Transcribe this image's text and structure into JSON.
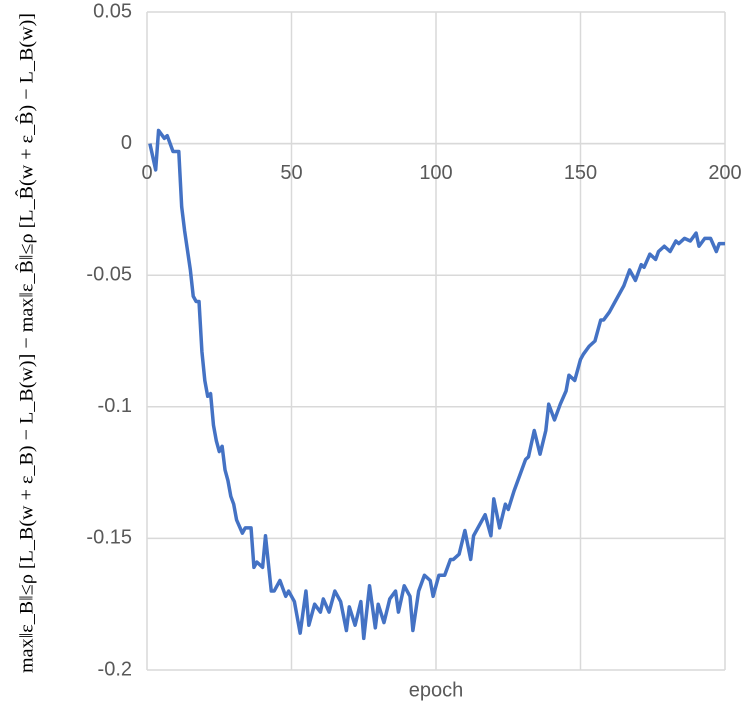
{
  "chart_data": {
    "type": "line",
    "x_label": "epoch",
    "y_label": "max‖ε_B‖≤ρ [L_B(w + ε_B) − L_B(w)] − max‖ε_B̂‖≤ρ [L_B̂(w + ε_B̂) − L_B(w)]",
    "color": "#4472c4",
    "grid": true,
    "xlim": [
      0,
      200
    ],
    "xticks": [
      0,
      50,
      100,
      150,
      200
    ],
    "ylim": [
      -0.2,
      0.05
    ],
    "yticks": [
      0.05,
      0,
      -0.05,
      -0.1,
      -0.15,
      -0.2
    ],
    "x": [
      1,
      3,
      4,
      6,
      7,
      9,
      11,
      12,
      13,
      15,
      16,
      17,
      18,
      19,
      20,
      21,
      22,
      23,
      24,
      25,
      26,
      27,
      28,
      29,
      30,
      31,
      33,
      34,
      36,
      37,
      38,
      40,
      41,
      43,
      44,
      46,
      48,
      49,
      51,
      53,
      55,
      56,
      58,
      60,
      61,
      63,
      65,
      67,
      69,
      70,
      72,
      74,
      75,
      77,
      79,
      80,
      82,
      84,
      86,
      87,
      89,
      91,
      92,
      94,
      96,
      98,
      99,
      101,
      103,
      105,
      106,
      108,
      110,
      112,
      113,
      115,
      117,
      119,
      120,
      122,
      124,
      125,
      127,
      129,
      131,
      132,
      134,
      136,
      138,
      139,
      141,
      143,
      145,
      146,
      148,
      150,
      151,
      153,
      155,
      157,
      158,
      160,
      162,
      164,
      165,
      167,
      169,
      171,
      172,
      174,
      176,
      177,
      179,
      181,
      183,
      184,
      186,
      188,
      190,
      191,
      193,
      195,
      197,
      198,
      200
    ],
    "values": [
      0,
      -0.01,
      0.005,
      0.002,
      0.003,
      -0.003,
      -0.003,
      -0.024,
      -0.033,
      -0.048,
      -0.058,
      -0.06,
      -0.06,
      -0.079,
      -0.09,
      -0.096,
      -0.095,
      -0.107,
      -0.113,
      -0.117,
      -0.115,
      -0.124,
      -0.128,
      -0.134,
      -0.137,
      -0.143,
      -0.148,
      -0.146,
      -0.146,
      -0.161,
      -0.159,
      -0.161,
      -0.149,
      -0.17,
      -0.17,
      -0.166,
      -0.172,
      -0.17,
      -0.174,
      -0.186,
      -0.17,
      -0.183,
      -0.175,
      -0.178,
      -0.173,
      -0.178,
      -0.17,
      -0.174,
      -0.185,
      -0.176,
      -0.183,
      -0.174,
      -0.188,
      -0.168,
      -0.184,
      -0.175,
      -0.182,
      -0.173,
      -0.17,
      -0.178,
      -0.168,
      -0.172,
      -0.185,
      -0.17,
      -0.164,
      -0.166,
      -0.172,
      -0.164,
      -0.164,
      -0.158,
      -0.158,
      -0.156,
      -0.147,
      -0.158,
      -0.149,
      -0.145,
      -0.141,
      -0.149,
      -0.135,
      -0.146,
      -0.137,
      -0.139,
      -0.132,
      -0.126,
      -0.12,
      -0.119,
      -0.109,
      -0.118,
      -0.109,
      -0.099,
      -0.105,
      -0.099,
      -0.094,
      -0.088,
      -0.09,
      -0.082,
      -0.08,
      -0.077,
      -0.075,
      -0.067,
      -0.067,
      -0.064,
      -0.06,
      -0.056,
      -0.054,
      -0.048,
      -0.052,
      -0.046,
      -0.047,
      -0.042,
      -0.044,
      -0.041,
      -0.039,
      -0.041,
      -0.037,
      -0.038,
      -0.036,
      -0.037,
      -0.034,
      -0.039,
      -0.036,
      -0.036,
      -0.041,
      -0.038,
      -0.038
    ]
  }
}
